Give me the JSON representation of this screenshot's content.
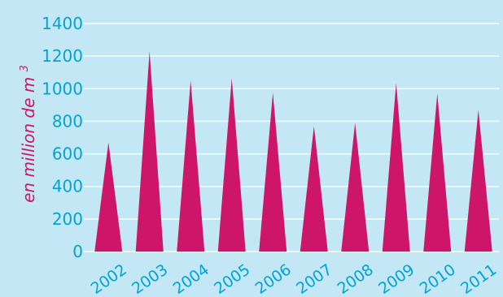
{
  "chart_data": {
    "type": "bar",
    "bar_shape": "triangle",
    "categories": [
      "2002",
      "2003",
      "2004",
      "2005",
      "2006",
      "2007",
      "2008",
      "2009",
      "2010",
      "2011"
    ],
    "values": [
      670,
      1230,
      1050,
      1065,
      975,
      770,
      790,
      1035,
      970,
      870
    ],
    "title": "",
    "xlabel": "",
    "ylabel": "en million de m",
    "ylabel_superscript": "3",
    "ylim": [
      0,
      1400
    ],
    "yticks": [
      "0",
      "200",
      "400",
      "600",
      "800",
      "1000",
      "1200",
      "1400"
    ],
    "grid": true,
    "legend": "none",
    "colors": {
      "background": "#c3e7f4",
      "bar": "#cd1569",
      "tick_text": "#00a4d6",
      "ylabel_text": "#cd1569",
      "grid": "#ffffff"
    }
  }
}
